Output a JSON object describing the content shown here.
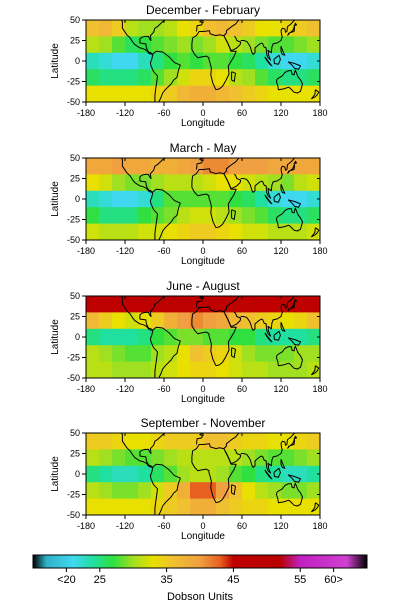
{
  "chart_data": {
    "type": "heatmap",
    "panels": [
      {
        "title": "December - February",
        "xlabel": "Longitude",
        "ylabel": "Latitude",
        "xlim": [
          -180,
          180
        ],
        "ylim": [
          -50,
          50
        ],
        "xticks": [
          -180,
          -120,
          -60,
          0,
          60,
          120,
          180
        ],
        "yticks": [
          50,
          25,
          0,
          -25,
          -50
        ],
        "grid": [
          [
            36,
            37,
            35,
            31,
            30,
            30,
            31,
            33,
            34,
            36,
            37,
            36,
            35,
            33,
            33,
            34,
            35,
            36
          ],
          [
            31,
            30,
            28,
            26,
            27,
            28,
            29,
            30,
            29,
            30,
            32,
            31,
            30,
            29,
            28,
            28,
            29,
            30
          ],
          [
            23,
            22,
            21,
            21,
            23,
            25,
            27,
            28,
            27,
            28,
            28,
            27,
            26,
            24,
            22,
            21,
            21,
            22
          ],
          [
            26,
            25,
            25,
            25,
            26,
            28,
            30,
            32,
            34,
            34,
            33,
            31,
            30,
            28,
            26,
            25,
            25,
            26
          ],
          [
            33,
            33,
            33,
            33,
            33,
            34,
            35,
            37,
            38,
            38,
            37,
            36,
            35,
            34,
            33,
            33,
            33,
            33
          ]
        ]
      },
      {
        "title": "March - May",
        "xlabel": "Longitude",
        "ylabel": "Latitude",
        "xlim": [
          -180,
          180
        ],
        "ylim": [
          -50,
          50
        ],
        "xticks": [
          -180,
          -120,
          -60,
          0,
          60,
          120,
          180
        ],
        "yticks": [
          50,
          25,
          0,
          -25,
          -50
        ],
        "grid": [
          [
            39,
            39,
            40,
            39,
            39,
            38,
            38,
            39,
            40,
            41,
            41,
            40,
            40,
            40,
            39,
            39,
            39,
            39
          ],
          [
            33,
            32,
            30,
            29,
            29,
            30,
            31,
            31,
            31,
            32,
            33,
            33,
            32,
            31,
            30,
            29,
            31,
            32
          ],
          [
            23,
            22,
            21,
            21,
            22,
            25,
            28,
            28,
            28,
            28,
            28,
            27,
            26,
            24,
            22,
            21,
            21,
            22
          ],
          [
            27,
            25,
            25,
            25,
            27,
            28,
            29,
            31,
            32,
            32,
            31,
            30,
            29,
            28,
            26,
            25,
            25,
            26
          ],
          [
            32,
            31,
            31,
            31,
            32,
            32,
            33,
            34,
            35,
            35,
            34,
            33,
            32,
            32,
            31,
            31,
            31,
            32
          ]
        ]
      },
      {
        "title": "June - August",
        "xlabel": "Longitude",
        "ylabel": "Latitude",
        "xlim": [
          -180,
          180
        ],
        "ylim": [
          -50,
          50
        ],
        "xticks": [
          -180,
          -120,
          -60,
          0,
          60,
          120,
          180
        ],
        "yticks": [
          50,
          25,
          0,
          -25,
          -50
        ],
        "grid": [
          [
            47,
            47,
            46,
            45,
            46,
            47,
            48,
            48,
            47,
            47,
            47,
            48,
            47,
            46,
            45,
            45,
            46,
            47
          ],
          [
            37,
            35,
            33,
            32,
            33,
            35,
            38,
            40,
            41,
            40,
            39,
            37,
            36,
            35,
            34,
            33,
            34,
            36
          ],
          [
            25,
            24,
            24,
            24,
            25,
            27,
            28,
            29,
            29,
            28,
            28,
            27,
            27,
            25,
            24,
            24,
            24,
            25
          ],
          [
            31,
            30,
            29,
            28,
            28,
            30,
            31,
            33,
            36,
            35,
            34,
            32,
            30,
            29,
            29,
            29,
            30,
            30
          ],
          [
            31,
            31,
            30,
            30,
            30,
            31,
            32,
            33,
            34,
            34,
            33,
            32,
            31,
            31,
            30,
            30,
            30,
            31
          ]
        ]
      },
      {
        "title": "September - November",
        "xlabel": "Longitude",
        "ylabel": "Latitude",
        "xlim": [
          -180,
          180
        ],
        "ylim": [
          -50,
          50
        ],
        "xticks": [
          -180,
          -120,
          -60,
          0,
          60,
          120,
          180
        ],
        "yticks": [
          50,
          25,
          0,
          -25,
          -50
        ],
        "grid": [
          [
            35,
            35,
            34,
            33,
            33,
            34,
            35,
            35,
            35,
            36,
            36,
            35,
            34,
            34,
            33,
            33,
            34,
            35
          ],
          [
            31,
            30,
            29,
            28,
            28,
            29,
            30,
            31,
            31,
            31,
            31,
            31,
            30,
            29,
            28,
            28,
            29,
            30
          ],
          [
            25,
            24,
            23,
            23,
            24,
            26,
            28,
            30,
            31,
            31,
            30,
            28,
            27,
            25,
            24,
            23,
            23,
            24
          ],
          [
            31,
            30,
            29,
            29,
            30,
            32,
            35,
            38,
            43,
            43,
            40,
            36,
            33,
            31,
            30,
            29,
            29,
            30
          ],
          [
            33,
            33,
            33,
            33,
            33,
            34,
            35,
            36,
            38,
            38,
            36,
            35,
            34,
            34,
            33,
            33,
            33,
            33
          ]
        ]
      }
    ],
    "colorbar": {
      "label": "Dobson Units",
      "min": 15,
      "max": 65,
      "ticks": [
        {
          "value": 20,
          "label": "<20"
        },
        {
          "value": 25,
          "label": "25"
        },
        {
          "value": 35,
          "label": "35"
        },
        {
          "value": 45,
          "label": "45"
        },
        {
          "value": 55,
          "label": "55"
        },
        {
          "value": 60,
          "label": "60>"
        }
      ],
      "stops": [
        {
          "value": 15,
          "color": "#000000"
        },
        {
          "value": 17,
          "color": "#30b0c8"
        },
        {
          "value": 21,
          "color": "#40d8f0"
        },
        {
          "value": 24,
          "color": "#20e0a0"
        },
        {
          "value": 27,
          "color": "#30e040"
        },
        {
          "value": 30,
          "color": "#a0e020"
        },
        {
          "value": 33,
          "color": "#e8e000"
        },
        {
          "value": 36,
          "color": "#f0c030"
        },
        {
          "value": 40,
          "color": "#f0a040"
        },
        {
          "value": 43,
          "color": "#e86020"
        },
        {
          "value": 45,
          "color": "#c00000"
        },
        {
          "value": 52,
          "color": "#b80000"
        },
        {
          "value": 55,
          "color": "#c020c0"
        },
        {
          "value": 62,
          "color": "#d040d0"
        },
        {
          "value": 65,
          "color": "#000000"
        }
      ]
    }
  }
}
